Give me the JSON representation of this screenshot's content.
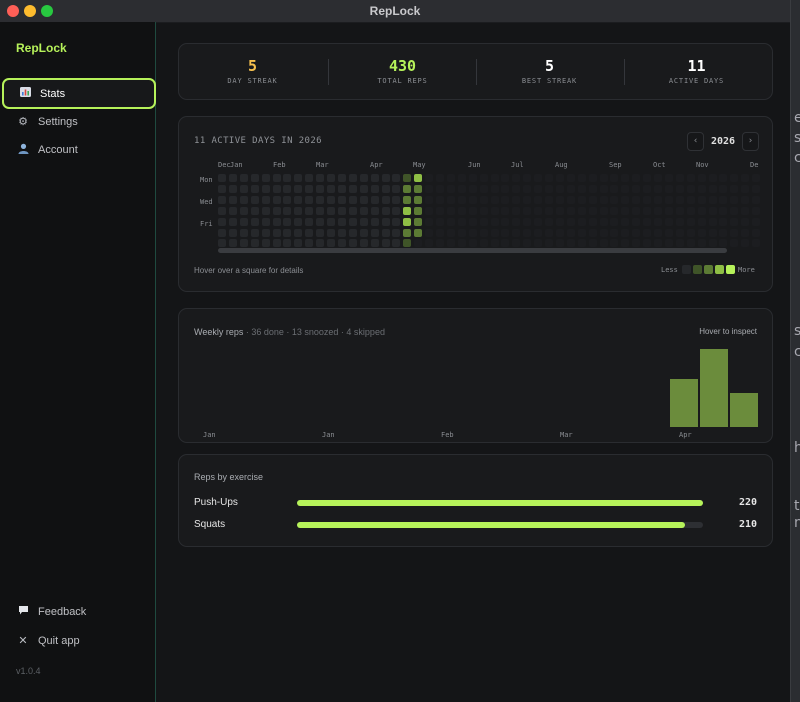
{
  "window": {
    "title": "RepLock"
  },
  "sidebar": {
    "logo": "RepLock",
    "items": [
      {
        "label": "Stats",
        "icon": "bar-chart-icon",
        "active": true
      },
      {
        "label": "Settings",
        "icon": "gear-icon",
        "active": false
      },
      {
        "label": "Account",
        "icon": "user-icon",
        "active": false
      }
    ],
    "bottom_items": [
      {
        "label": "Feedback",
        "icon": "speech-bubble-icon"
      },
      {
        "label": "Quit app",
        "icon": "close-icon"
      }
    ],
    "version": "v1.0.4"
  },
  "stats": [
    {
      "value": "5",
      "label": "DAY STREAK",
      "color": "#f6c04e"
    },
    {
      "value": "430",
      "label": "TOTAL REPS",
      "color": "#b6f25a"
    },
    {
      "value": "5",
      "label": "BEST STREAK",
      "color": "#ffffff"
    },
    {
      "value": "11",
      "label": "ACTIVE DAYS",
      "color": "#ffffff"
    }
  ],
  "calendar": {
    "title": "11 ACTIVE DAYS IN 2026",
    "year": "2026",
    "prev_icon": "chevron-left-icon",
    "next_icon": "chevron-right-icon",
    "months": [
      "Dec",
      "Jan",
      "Feb",
      "Mar",
      "Apr",
      "May",
      "Jun",
      "Jul",
      "Aug",
      "Sep",
      "Oct",
      "Nov",
      "De"
    ],
    "day_labels": [
      "Mon",
      "Wed",
      "Fri"
    ],
    "hover_note": "Hover over a square for details",
    "legend_less": "Less",
    "legend_more": "More",
    "colors": {
      "empty_past": "#26282b",
      "empty_future": "#1c1d20",
      "level1": "#3f5428",
      "level2": "#5c7b34",
      "level3": "#8fbf45",
      "level4": "#b6f25a"
    }
  },
  "weekly": {
    "title": "Weekly reps",
    "subtitle": " · 36 done · 13 snoozed · 4 skipped",
    "hover_label": "Hover to inspect",
    "x_labels": [
      "Jan",
      "Jan",
      "Feb",
      "Mar",
      "Apr"
    ],
    "bar_color": "#6b8c3c"
  },
  "chart_data": {
    "type": "bar",
    "title": "Weekly reps",
    "values": [
      48,
      78,
      34
    ]
  },
  "exercises": {
    "title": "Reps by exercise",
    "max": 220,
    "items": [
      {
        "name": "Push-Ups",
        "value": "220",
        "reps": 220
      },
      {
        "name": "Squats",
        "value": "210",
        "reps": 210
      }
    ]
  },
  "desktop_glyphs": [
    "e",
    "s",
    "c",
    "s",
    "c",
    "h",
    "t",
    "n"
  ]
}
